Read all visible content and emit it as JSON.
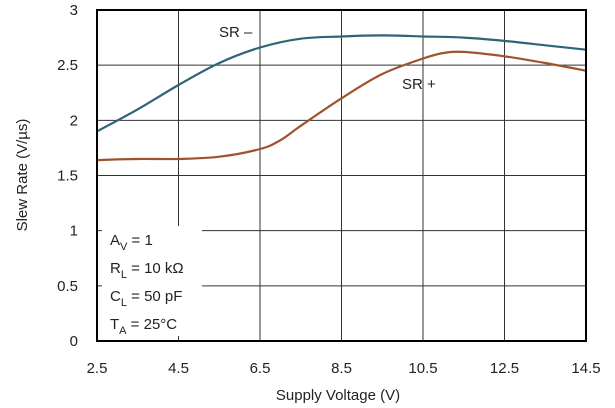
{
  "chart_data": {
    "type": "line",
    "xlabel": "Supply Voltage (V)",
    "ylabel": "Slew Rate (V/µs)",
    "xlim": [
      2.5,
      14.5
    ],
    "ylim": [
      0,
      3
    ],
    "xticks": [
      "2.5",
      "4.5",
      "6.5",
      "8.5",
      "10.5",
      "12.5",
      "14.5"
    ],
    "yticks": [
      "0",
      "0.5",
      "1",
      "1.5",
      "2",
      "2.5",
      "3"
    ],
    "grid": true,
    "series": [
      {
        "name": "SR –",
        "color": "#2e6478",
        "x": [
          2.5,
          3.5,
          4.5,
          5.5,
          6.5,
          7.5,
          8.5,
          9.5,
          10.5,
          11.5,
          12.5,
          13.5,
          14.5
        ],
        "y": [
          1.9,
          2.1,
          2.32,
          2.52,
          2.66,
          2.74,
          2.76,
          2.77,
          2.76,
          2.75,
          2.72,
          2.68,
          2.64
        ]
      },
      {
        "name": "SR +",
        "color": "#a0522d",
        "x": [
          2.5,
          3.5,
          4.5,
          5.5,
          6.5,
          7.0,
          7.5,
          8.5,
          9.5,
          10.5,
          11.0,
          11.5,
          12.5,
          13.5,
          14.5
        ],
        "y": [
          1.64,
          1.65,
          1.65,
          1.67,
          1.74,
          1.82,
          1.95,
          2.2,
          2.42,
          2.56,
          2.61,
          2.62,
          2.58,
          2.52,
          2.45
        ]
      }
    ]
  },
  "annotations": {
    "av_main": "A",
    "av_sub": "V",
    "av_val": " = 1",
    "rl_main": "R",
    "rl_sub": "L",
    "rl_val": " = 10 kΩ",
    "cl_main": "C",
    "cl_sub": "L",
    "cl_val": " = 50 pF",
    "ta_main": "T",
    "ta_sub": "A",
    "ta_val": " = 25°C"
  }
}
